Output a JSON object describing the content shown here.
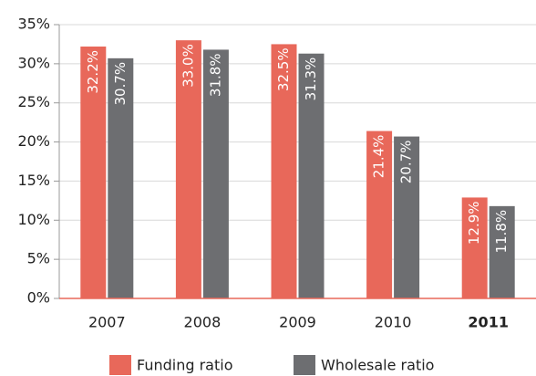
{
  "chart_data": {
    "type": "bar",
    "categories": [
      "2007",
      "2008",
      "2009",
      "2010",
      "2011"
    ],
    "highlight_category": "2011",
    "series": [
      {
        "name": "Funding ratio",
        "color": "#e8685a",
        "values": [
          32.2,
          33.0,
          32.5,
          21.4,
          12.9
        ],
        "value_labels": [
          "32.2%",
          "33.0%",
          "32.5%",
          "21.4%",
          "12.9%"
        ]
      },
      {
        "name": "Wholesale ratio",
        "color": "#6d6e71",
        "values": [
          30.7,
          31.8,
          31.3,
          20.7,
          11.8
        ],
        "value_labels": [
          "30.7%",
          "31.8%",
          "31.3%",
          "20.7%",
          "11.8%"
        ]
      }
    ],
    "ylim": [
      0,
      35
    ],
    "yticks": [
      {
        "value": 0,
        "label": "0%"
      },
      {
        "value": 5,
        "label": "5%"
      },
      {
        "value": 10,
        "label": "10%"
      },
      {
        "value": 15,
        "label": "15%"
      },
      {
        "value": 20,
        "label": "20%"
      },
      {
        "value": 25,
        "label": "25%"
      },
      {
        "value": 30,
        "label": "30%"
      },
      {
        "value": 35,
        "label": "35%"
      }
    ],
    "grid": true
  }
}
